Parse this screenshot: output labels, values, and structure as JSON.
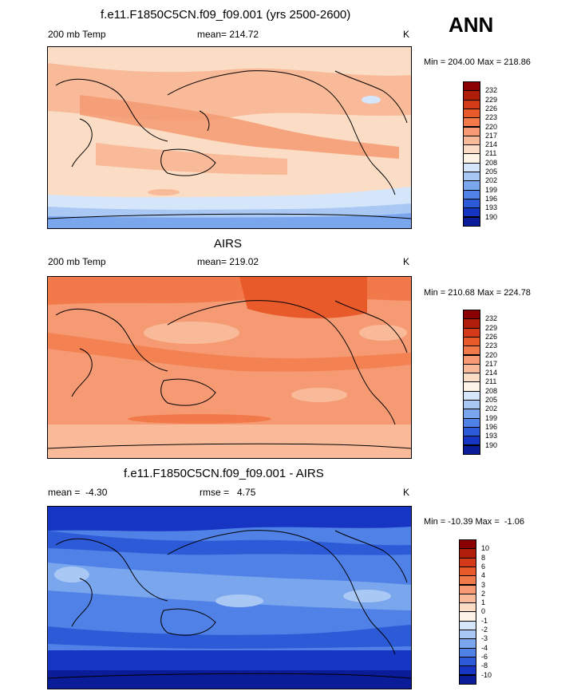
{
  "header": {
    "season": "ANN"
  },
  "panels": [
    {
      "title": "f.e11.F1850C5CN.f09_f09.001 (yrs 2500-2600)",
      "left_label": "200 mb Temp",
      "center_label": "mean= 214.72",
      "right_label": "K",
      "minmax": "Min = 204.00 Max = 218.86",
      "palette": "abs",
      "base_level": 7
    },
    {
      "title": "AIRS",
      "left_label": "200 mb Temp",
      "center_label": "mean= 219.02",
      "right_label": "K",
      "minmax": "Min = 210.68 Max = 224.78",
      "palette": "abs",
      "base_level": 9
    },
    {
      "title": "f.e11.F1850C5CN.f09_f09.001 - AIRS",
      "left_label": "mean =  -4.30",
      "center_label": "rmse =   4.75",
      "right_label": "K",
      "minmax": "Min = -10.39 Max =  -1.06",
      "palette": "diff",
      "base_level": 3
    }
  ],
  "colorbars": {
    "abs": {
      "labels": [
        "232",
        "229",
        "226",
        "223",
        "220",
        "217",
        "214",
        "211",
        "208",
        "205",
        "202",
        "199",
        "196",
        "193",
        "190"
      ],
      "colors": [
        "#8b0000",
        "#b01e0a",
        "#d33b18",
        "#e85a2a",
        "#f27a4a",
        "#f59a72",
        "#f8ba98",
        "#fbdcc4",
        "#fdf3e6",
        "#d6e6fa",
        "#a9c8f4",
        "#7aa6ee",
        "#4f81e6",
        "#2d5ad7",
        "#1535c2",
        "#0b1c99"
      ]
    },
    "diff": {
      "labels": [
        "10",
        "8",
        "6",
        "4",
        "3",
        "2",
        "1",
        "0",
        "-1",
        "-2",
        "-3",
        "-4",
        "-6",
        "-8",
        "-10"
      ],
      "colors": [
        "#8b0000",
        "#b01e0a",
        "#d33b18",
        "#e85a2a",
        "#f27a4a",
        "#f59a72",
        "#f8ba98",
        "#fbdcc4",
        "#fdf3e6",
        "#d6e6fa",
        "#a9c8f4",
        "#7aa6ee",
        "#4f81e6",
        "#2d5ad7",
        "#1535c2",
        "#0b1c99"
      ]
    }
  }
}
